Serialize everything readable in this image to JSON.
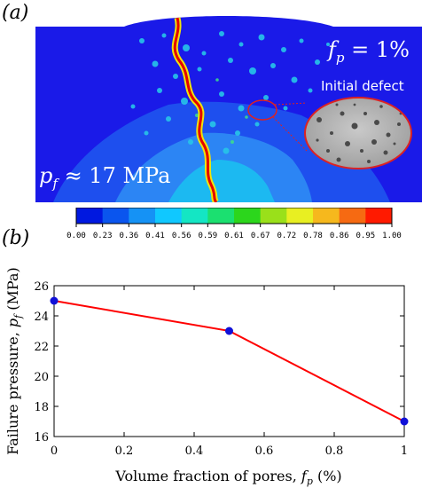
{
  "panel_a": {
    "label": "(a)",
    "fp_text": "f",
    "fp_sub": "p",
    "fp_value": " = 1%",
    "pf_text": "p",
    "pf_sub": "f",
    "pf_value": " ≈ 17 MPa",
    "inset_label": "Initial defect",
    "colorbar": {
      "ticks": [
        "0.00",
        "0.23",
        "0.36",
        "0.41",
        "0.56",
        "0.59",
        "0.61",
        "0.67",
        "0.72",
        "0.78",
        "0.86",
        "0.95",
        "1.00"
      ],
      "colors": [
        "#0018e0",
        "#0a55ee",
        "#1592f5",
        "#10c8ff",
        "#14e6c4",
        "#1be070",
        "#2cd61c",
        "#9ae01a",
        "#e8ef22",
        "#f6b81d",
        "#f66a12",
        "#ff1a00"
      ]
    },
    "colors": {
      "background": "#1919e6",
      "crack": "#e40000"
    }
  },
  "panel_b": {
    "label": "(b)"
  },
  "chart_data": {
    "type": "line",
    "x": [
      0,
      0.5,
      1
    ],
    "series": [
      {
        "values": [
          25,
          23,
          17
        ]
      }
    ],
    "xlabel": "Volume fraction of pores,  f_p (%)",
    "ylabel": "Failure pressure,  p_f (MPa)",
    "xlim": [
      0,
      1
    ],
    "ylim": [
      16,
      26
    ],
    "xticks": [
      "0",
      "0.2",
      "0.4",
      "0.6",
      "0.8",
      "1"
    ],
    "yticks": [
      "16",
      "18",
      "20",
      "22",
      "24",
      "26"
    ],
    "line_color": "#ff0000",
    "marker_color": "#1010d8",
    "grid": false
  }
}
